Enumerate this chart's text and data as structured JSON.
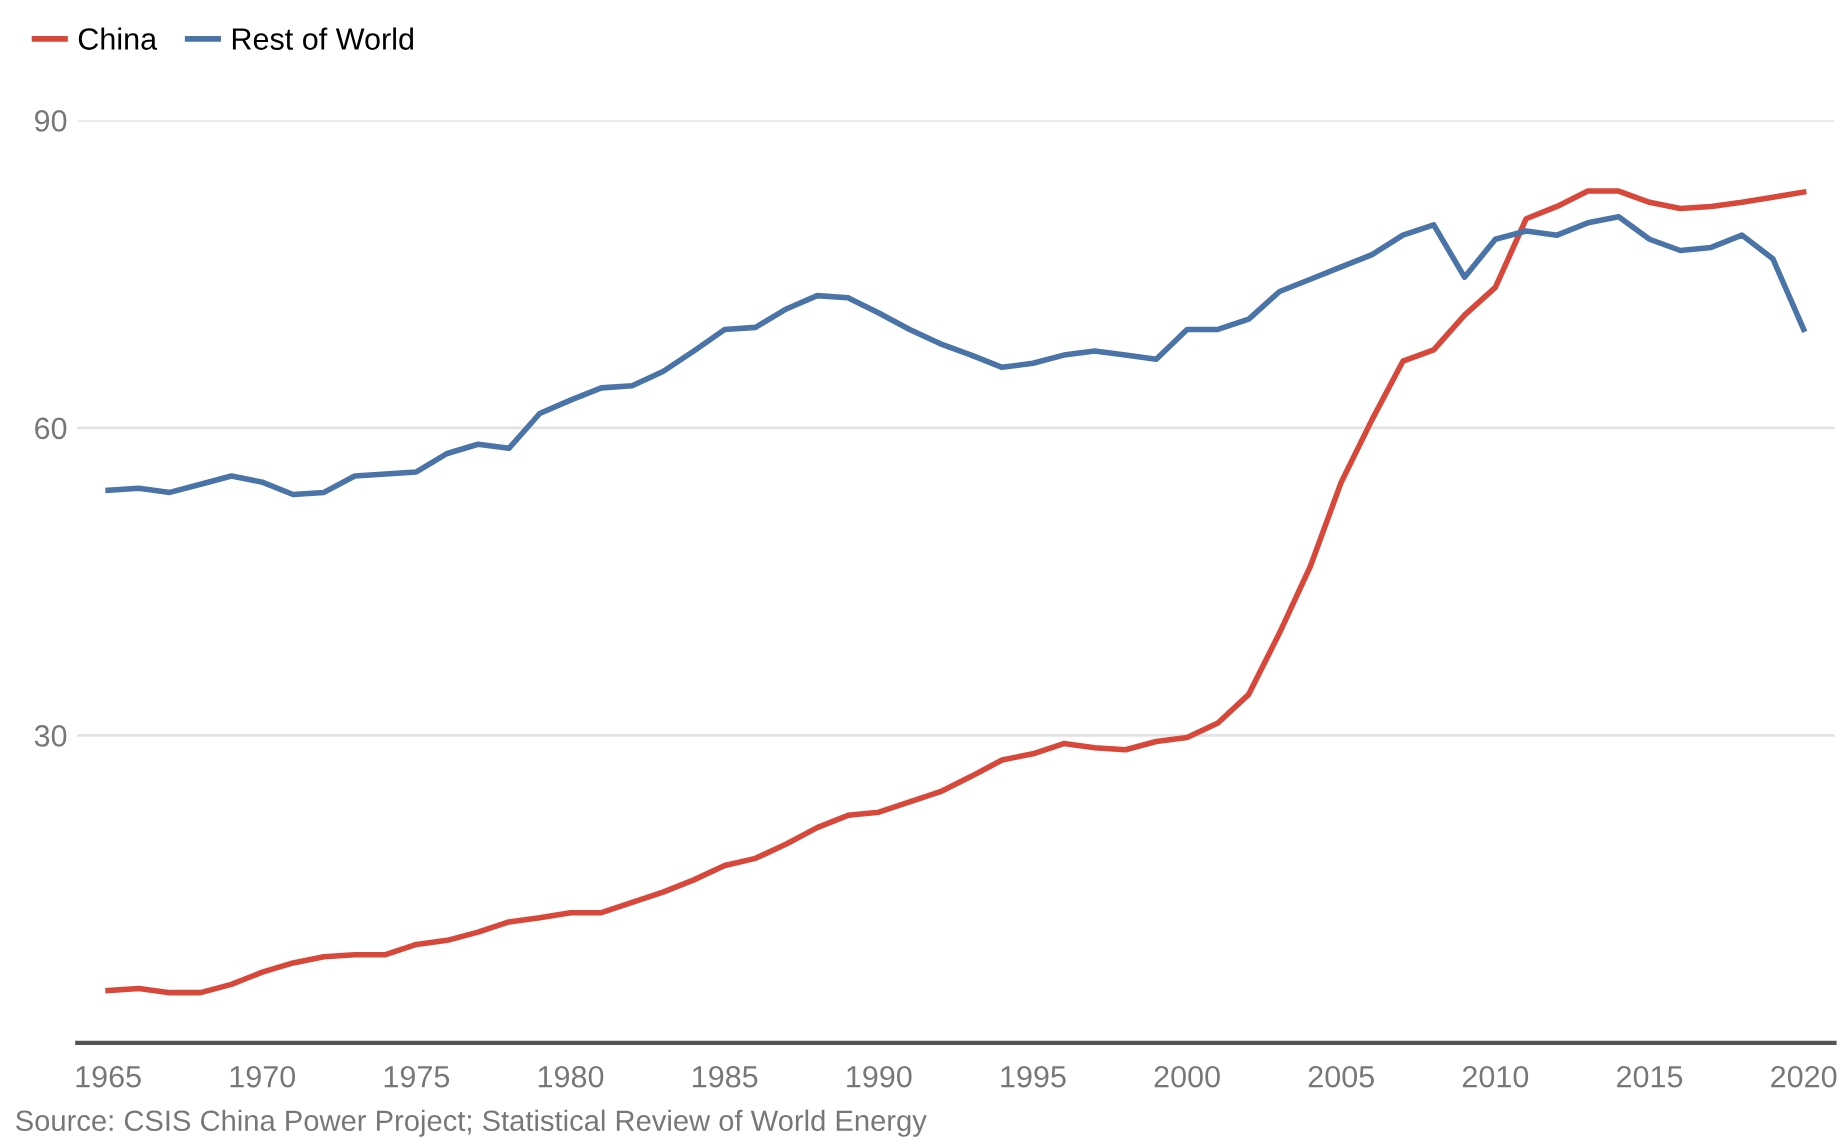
{
  "chart_data": {
    "type": "line",
    "x": [
      1965,
      1966,
      1967,
      1968,
      1969,
      1970,
      1971,
      1972,
      1973,
      1974,
      1975,
      1976,
      1977,
      1978,
      1979,
      1980,
      1981,
      1982,
      1983,
      1984,
      1985,
      1986,
      1987,
      1988,
      1989,
      1990,
      1991,
      1992,
      1993,
      1994,
      1995,
      1996,
      1997,
      1998,
      1999,
      2000,
      2001,
      2002,
      2003,
      2004,
      2005,
      2006,
      2007,
      2008,
      2009,
      2010,
      2011,
      2012,
      2013,
      2014,
      2015,
      2016,
      2017,
      2018,
      2019,
      2020
    ],
    "series": [
      {
        "name": "China",
        "color": "#d7483b",
        "values": [
          5.1,
          5.3,
          4.9,
          4.9,
          5.7,
          6.9,
          7.8,
          8.4,
          8.6,
          8.6,
          9.6,
          10,
          10.8,
          11.8,
          12.2,
          12.7,
          12.7,
          13.7,
          14.7,
          15.9,
          17.3,
          18,
          19.4,
          21,
          22.2,
          22.5,
          23.5,
          24.5,
          26,
          27.6,
          28.2,
          29.2,
          28.8,
          28.6,
          29.4,
          29.8,
          31.2,
          34,
          40,
          46.5,
          54.7,
          60.8,
          66.5,
          67.6,
          71,
          73.7,
          80.4,
          81.6,
          83.1,
          83.1,
          82,
          81.4,
          81.6,
          82,
          82.5,
          83
        ]
      },
      {
        "name": "Rest of World",
        "color": "#4a74a8",
        "values": [
          53.9,
          54.1,
          53.7,
          54.5,
          55.3,
          54.7,
          53.5,
          53.7,
          55.3,
          55.5,
          55.7,
          57.5,
          58.4,
          58,
          61.4,
          62.7,
          63.9,
          64.1,
          65.5,
          67.5,
          69.6,
          69.8,
          71.6,
          72.9,
          72.7,
          71.2,
          69.6,
          68.2,
          67.1,
          65.9,
          66.3,
          67.1,
          67.5,
          67.1,
          66.7,
          69.6,
          69.6,
          70.6,
          73.3,
          74.5,
          75.7,
          76.9,
          78.8,
          79.8,
          74.7,
          78.4,
          79.2,
          78.8,
          80,
          80.6,
          78.4,
          77.3,
          77.6,
          78.8,
          76.5,
          69.6
        ]
      }
    ],
    "xlim": [
      1964,
      2021
    ],
    "xticks": [
      1965,
      1970,
      1975,
      1980,
      1985,
      1990,
      1995,
      2000,
      2005,
      2010,
      2015,
      2020
    ],
    "ylim": [
      0,
      90
    ],
    "yticks": [
      30,
      60,
      90
    ],
    "grid": "y",
    "legend": "top left",
    "marker": "none",
    "line_style": "solid",
    "annotations": [
      "Source: CSIS China Power Project; Statistical Review of World Energy"
    ]
  }
}
